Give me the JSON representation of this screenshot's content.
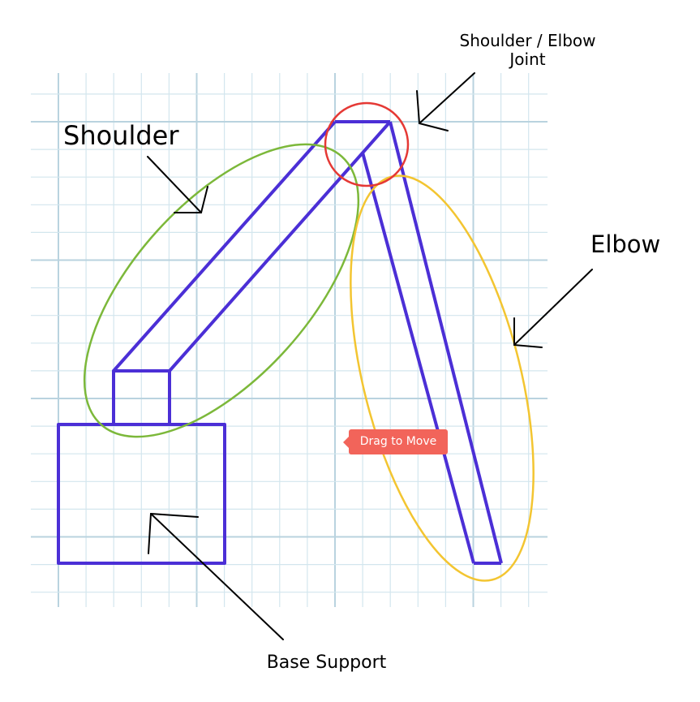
{
  "labels": {
    "shoulder": "Shoulder",
    "elbow": "Elbow",
    "joint": "Shoulder / Elbow Joint",
    "base": "Base Support"
  },
  "tooltip": {
    "text": "Drag to Move"
  },
  "colors": {
    "arm": "#4b2fd6",
    "shoulder_highlight": "#7cb83a",
    "elbow_highlight": "#f3c531",
    "joint_highlight": "#e53935",
    "grid": "#cfe4ec",
    "tooltip": "#f2645a"
  }
}
